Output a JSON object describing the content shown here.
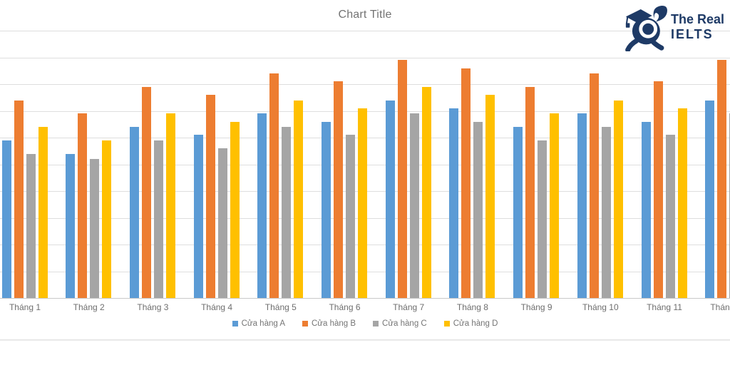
{
  "title": "Chart Title",
  "logo": {
    "line1": "The Real",
    "line2": "IELTS",
    "color": "#1e3a66"
  },
  "colors": {
    "series_a": "#5B9BD5",
    "series_b": "#ED7D31",
    "series_c": "#A5A5A5",
    "series_d": "#FFC000",
    "gridline": "#dedede",
    "title_text": "#737373",
    "label_text": "#6e6e6e",
    "logo_navy": "#1e3a66"
  },
  "chart_data": {
    "type": "bar",
    "title": "Chart Title",
    "xlabel": "",
    "ylabel": "",
    "ylim": [
      0,
      100
    ],
    "grid": "horizontal gridlines every 10 units; y-axis tick labels cropped out of frame at left",
    "legend_position": "bottom",
    "categories": [
      "Tháng 1",
      "Tháng 2",
      "Tháng 3",
      "Tháng 4",
      "Tháng 5",
      "Tháng 6",
      "Tháng 7",
      "Tháng 8",
      "Tháng 9",
      "Tháng 10",
      "Tháng 11",
      "Tháng 12"
    ],
    "series": [
      {
        "name": "Cửa hàng A",
        "color": "#5B9BD5",
        "values": [
          59,
          54,
          64,
          61,
          69,
          66,
          74,
          71,
          64,
          69,
          66,
          74
        ]
      },
      {
        "name": "Cửa hàng B",
        "color": "#ED7D31",
        "values": [
          74,
          69,
          79,
          76,
          84,
          81,
          89,
          86,
          79,
          84,
          81,
          89
        ]
      },
      {
        "name": "Cửa hàng C",
        "color": "#A5A5A5",
        "values": [
          54,
          52,
          59,
          56,
          64,
          61,
          69,
          66,
          59,
          64,
          61,
          69
        ]
      },
      {
        "name": "Cửa hàng D",
        "color": "#FFC000",
        "values": [
          64,
          59,
          69,
          66,
          74,
          71,
          79,
          76,
          69,
          74,
          71,
          79
        ]
      }
    ],
    "note": "Month 12 group partially clipped at right edge of screenshot"
  }
}
